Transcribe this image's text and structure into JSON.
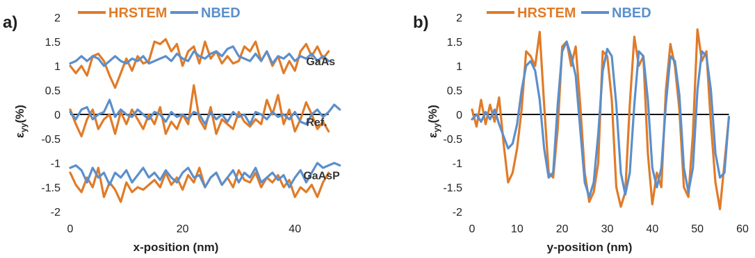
{
  "colors": {
    "HRSTEM": "#e07b28",
    "NBED": "#5b8fcc",
    "zero": "#111111",
    "text": "#222222"
  },
  "chart_data": [
    {
      "type": "line",
      "panel_label": "a)",
      "xlabel": "x-position (nm)",
      "ylabel": "εᵧᵧ(%)",
      "ylabel_main": "ε",
      "ylabel_sub": "yy",
      "ylabel_tail": "(%)",
      "xlim": [
        0,
        50
      ],
      "ylim": [
        -2,
        2
      ],
      "xticks": [
        0,
        20,
        40
      ],
      "yticks": [
        2,
        1.5,
        1,
        0.5,
        0,
        -0.5,
        -1,
        -1.5,
        -2
      ],
      "ytick_labels": [
        "2",
        "1.5",
        "1",
        "0.5",
        "0",
        "-0.5",
        "-1",
        "-1.5",
        "-2"
      ],
      "legend": {
        "placement": "top",
        "entries": [
          "HRSTEM",
          "NBED"
        ]
      },
      "annotations": [
        {
          "text": "GaAs",
          "x": 42,
          "y": 1.1
        },
        {
          "text": "Ref.",
          "x": 42,
          "y": -0.15
        },
        {
          "text": "GaAsP",
          "x": 41.5,
          "y": -1.25
        }
      ],
      "series": [
        {
          "name": "HRSTEM",
          "group": "GaAs",
          "x": [
            0,
            1,
            2,
            3,
            4,
            5,
            6,
            7,
            8,
            9,
            10,
            11,
            12,
            13,
            14,
            15,
            16,
            17,
            18,
            19,
            20,
            21,
            22,
            23,
            24,
            25,
            26,
            27,
            28,
            29,
            30,
            31,
            32,
            33,
            34,
            35,
            36,
            37,
            38,
            39,
            40,
            41,
            42,
            43,
            44,
            45,
            46
          ],
          "y": [
            1.0,
            0.85,
            1.0,
            0.8,
            1.2,
            1.25,
            1.1,
            0.8,
            0.55,
            0.85,
            1.15,
            0.9,
            1.2,
            1.05,
            1.1,
            1.5,
            1.45,
            1.55,
            1.3,
            1.45,
            1.0,
            1.3,
            1.4,
            1.05,
            1.5,
            1.15,
            1.3,
            1.05,
            1.2,
            1.05,
            1.1,
            1.4,
            1.3,
            1.5,
            1.1,
            1.3,
            1.0,
            1.2,
            0.85,
            1.1,
            0.9,
            1.3,
            1.45,
            1.2,
            1.4,
            1.15,
            1.3
          ]
        },
        {
          "name": "NBED",
          "group": "GaAs",
          "x": [
            0,
            1,
            2,
            3,
            4,
            5,
            6,
            7,
            8,
            9,
            10,
            11,
            12,
            13,
            14,
            15,
            16,
            17,
            18,
            19,
            20,
            21,
            22,
            23,
            24,
            25,
            26,
            27,
            28,
            29,
            30,
            31,
            32,
            33,
            34,
            35,
            36,
            37,
            38,
            39,
            40,
            41,
            42,
            43,
            44,
            45,
            46
          ],
          "y": [
            1.05,
            1.1,
            1.2,
            1.1,
            1.2,
            1.15,
            1.0,
            1.1,
            1.2,
            1.1,
            1.05,
            1.15,
            1.1,
            1.2,
            1.05,
            1.1,
            1.15,
            1.2,
            1.1,
            1.25,
            1.15,
            1.1,
            1.3,
            1.2,
            1.15,
            1.25,
            1.3,
            1.2,
            1.35,
            1.4,
            1.2,
            1.15,
            1.1,
            1.25,
            1.1,
            1.3,
            1.05,
            1.2,
            1.15,
            1.25,
            1.1,
            1.2,
            1.15,
            1.25,
            1.1,
            1.2,
            1.1
          ]
        },
        {
          "name": "HRSTEM",
          "group": "Ref.",
          "x": [
            0,
            1,
            2,
            3,
            4,
            5,
            6,
            7,
            8,
            9,
            10,
            11,
            12,
            13,
            14,
            15,
            16,
            17,
            18,
            19,
            20,
            21,
            22,
            23,
            24,
            25,
            26,
            27,
            28,
            29,
            30,
            31,
            32,
            33,
            34,
            35,
            36,
            37,
            38,
            39,
            40,
            41,
            42,
            43,
            44,
            45,
            46
          ],
          "y": [
            0.1,
            -0.2,
            -0.45,
            -0.1,
            0.1,
            -0.3,
            -0.1,
            0.0,
            -0.4,
            0.05,
            -0.2,
            0.1,
            -0.1,
            -0.3,
            0.0,
            -0.2,
            0.15,
            -0.4,
            -0.15,
            -0.3,
            0.0,
            -0.2,
            0.6,
            -0.1,
            -0.3,
            0.15,
            -0.4,
            -0.1,
            -0.2,
            -0.3,
            0.05,
            -0.15,
            -0.25,
            -0.1,
            -0.2,
            0.3,
            0.0,
            0.4,
            -0.2,
            0.1,
            -0.35,
            -0.1,
            0.25,
            0.0,
            -0.3,
            -0.15,
            -0.35
          ]
        },
        {
          "name": "NBED",
          "group": "Ref.",
          "x": [
            0,
            1,
            2,
            3,
            4,
            5,
            6,
            7,
            8,
            9,
            10,
            11,
            12,
            13,
            14,
            15,
            16,
            17,
            18,
            19,
            20,
            21,
            22,
            23,
            24,
            25,
            26,
            27,
            28,
            29,
            30,
            31,
            32,
            33,
            34,
            35,
            36,
            37,
            38,
            39,
            40,
            41,
            42,
            43,
            44,
            45,
            46,
            47,
            48
          ],
          "y": [
            0.05,
            -0.1,
            0.1,
            0.15,
            -0.1,
            0.0,
            0.05,
            0.3,
            -0.05,
            0.1,
            0.0,
            -0.05,
            0.1,
            0.0,
            -0.1,
            0.05,
            0.0,
            -0.15,
            0.05,
            -0.05,
            0.0,
            -0.1,
            0.05,
            0.0,
            -0.2,
            0.05,
            -0.1,
            0.0,
            -0.15,
            0.05,
            -0.05,
            0.0,
            -0.2,
            0.05,
            0.0,
            -0.1,
            0.05,
            -0.05,
            0.0,
            -0.1,
            0.05,
            -0.15,
            -0.2,
            0.0,
            0.1,
            -0.05,
            0.05,
            0.2,
            0.1
          ]
        },
        {
          "name": "HRSTEM",
          "group": "GaAsP",
          "x": [
            0,
            1,
            2,
            3,
            4,
            5,
            6,
            7,
            8,
            9,
            10,
            11,
            12,
            13,
            14,
            15,
            16,
            17,
            18,
            19,
            20,
            21,
            22,
            23,
            24,
            25,
            26,
            27,
            28,
            29,
            30,
            31,
            32,
            33,
            34,
            35,
            36,
            37,
            38,
            39,
            40,
            41,
            42,
            43,
            44,
            45,
            46
          ],
          "y": [
            -1.2,
            -1.45,
            -1.6,
            -1.3,
            -1.5,
            -1.1,
            -1.7,
            -1.4,
            -1.55,
            -1.8,
            -1.4,
            -1.6,
            -1.5,
            -1.55,
            -1.45,
            -1.35,
            -1.5,
            -1.2,
            -1.45,
            -1.3,
            -1.55,
            -1.25,
            -1.4,
            -1.1,
            -1.5,
            -1.3,
            -1.2,
            -1.45,
            -1.3,
            -1.5,
            -1.15,
            -1.35,
            -1.4,
            -1.2,
            -1.5,
            -1.3,
            -1.4,
            -1.25,
            -1.5,
            -1.35,
            -1.7,
            -1.5,
            -1.6,
            -1.45,
            -1.7,
            -1.4,
            -1.2
          ]
        },
        {
          "name": "NBED",
          "group": "GaAsP",
          "x": [
            0,
            1,
            2,
            3,
            4,
            5,
            6,
            7,
            8,
            9,
            10,
            11,
            12,
            13,
            14,
            15,
            16,
            17,
            18,
            19,
            20,
            21,
            22,
            23,
            24,
            25,
            26,
            27,
            28,
            29,
            30,
            31,
            32,
            33,
            34,
            35,
            36,
            37,
            38,
            39,
            40,
            41,
            42,
            43,
            44,
            45,
            46,
            47,
            48
          ],
          "y": [
            -1.1,
            -1.05,
            -1.15,
            -1.4,
            -1.1,
            -1.3,
            -1.2,
            -1.45,
            -1.2,
            -1.3,
            -1.15,
            -1.4,
            -1.25,
            -1.1,
            -1.3,
            -1.2,
            -1.35,
            -1.15,
            -1.3,
            -1.4,
            -1.2,
            -1.1,
            -1.3,
            -1.25,
            -1.5,
            -1.3,
            -1.2,
            -1.45,
            -1.3,
            -1.15,
            -1.4,
            -1.2,
            -1.3,
            -1.1,
            -1.4,
            -1.3,
            -1.2,
            -1.35,
            -1.25,
            -1.5,
            -1.3,
            -1.15,
            -1.4,
            -1.2,
            -1.0,
            -1.1,
            -1.05,
            -1.0,
            -1.05
          ]
        }
      ]
    },
    {
      "type": "line",
      "panel_label": "b)",
      "xlabel": "y-position (nm)",
      "ylabel": "εᵧᵧ(%)",
      "ylabel_main": "ε",
      "ylabel_sub": "yy",
      "ylabel_tail": "(%)",
      "xlim": [
        0,
        60
      ],
      "ylim": [
        -2,
        2
      ],
      "xticks": [
        0,
        10,
        20,
        30,
        40,
        50,
        60
      ],
      "yticks": [
        2,
        1.5,
        1,
        0.5,
        0,
        -0.5,
        -1,
        -1.5,
        -2
      ],
      "ytick_labels": [
        "2",
        "1.5",
        "1",
        "0.5",
        "0",
        "-0.5",
        "-1",
        "-1.5",
        "-2"
      ],
      "legend": {
        "placement": "top",
        "entries": [
          "HRSTEM",
          "NBED"
        ]
      },
      "series": [
        {
          "name": "HRSTEM",
          "x": [
            0,
            1,
            2,
            3,
            4,
            5,
            6,
            7,
            8,
            9,
            10,
            11,
            12,
            13,
            14,
            15,
            16,
            17,
            18,
            19,
            20,
            21,
            22,
            23,
            24,
            25,
            26,
            27,
            28,
            29,
            30,
            31,
            32,
            33,
            34,
            35,
            36,
            37,
            38,
            39,
            40,
            41,
            42,
            43,
            44,
            45,
            46,
            47,
            48,
            49,
            50,
            51,
            52,
            53,
            54,
            55,
            56,
            57
          ],
          "y": [
            0.1,
            -0.25,
            0.3,
            -0.2,
            0.2,
            -0.15,
            0.35,
            -0.6,
            -1.4,
            -1.2,
            -0.7,
            0.1,
            1.3,
            1.2,
            1.0,
            1.7,
            0.2,
            -1.2,
            -1.3,
            -0.3,
            1.4,
            1.5,
            1.0,
            1.4,
            0.2,
            -1.2,
            -1.8,
            -1.6,
            -1.0,
            1.3,
            1.2,
            0.3,
            -1.5,
            -1.9,
            -1.6,
            0.2,
            1.6,
            1.0,
            1.2,
            -0.8,
            -1.85,
            -1.2,
            -1.5,
            0.5,
            1.45,
            1.0,
            0.1,
            -1.5,
            -1.7,
            -0.4,
            1.75,
            1.1,
            1.3,
            -0.2,
            -1.4,
            -1.95,
            -1.0,
            -0.05
          ]
        },
        {
          "name": "NBED",
          "x": [
            0,
            1,
            2,
            3,
            4,
            5,
            6,
            7,
            8,
            9,
            10,
            11,
            12,
            13,
            14,
            15,
            16,
            17,
            18,
            19,
            20,
            21,
            22,
            23,
            24,
            25,
            26,
            27,
            28,
            29,
            30,
            31,
            32,
            33,
            34,
            35,
            36,
            37,
            38,
            39,
            40,
            41,
            42,
            43,
            44,
            45,
            46,
            47,
            48,
            49,
            50,
            51,
            52,
            53,
            54,
            55,
            56,
            57
          ],
          "y": [
            -0.1,
            0.0,
            -0.15,
            0.05,
            -0.1,
            0.1,
            -0.2,
            -0.45,
            -0.7,
            -0.6,
            -0.2,
            0.5,
            1.0,
            1.1,
            0.9,
            0.3,
            -0.7,
            -1.3,
            -1.2,
            0.2,
            1.3,
            1.5,
            1.2,
            0.8,
            -0.3,
            -1.4,
            -1.7,
            -1.4,
            -0.4,
            0.9,
            1.35,
            1.2,
            0.2,
            -1.2,
            -1.65,
            -1.2,
            0.2,
            1.3,
            1.2,
            0.3,
            -1.1,
            -1.5,
            -1.1,
            0.2,
            1.2,
            1.1,
            0.4,
            -1.1,
            -1.6,
            -1.1,
            0.5,
            1.3,
            1.2,
            0.5,
            -0.8,
            -1.3,
            -1.2,
            -0.05
          ]
        }
      ]
    }
  ]
}
